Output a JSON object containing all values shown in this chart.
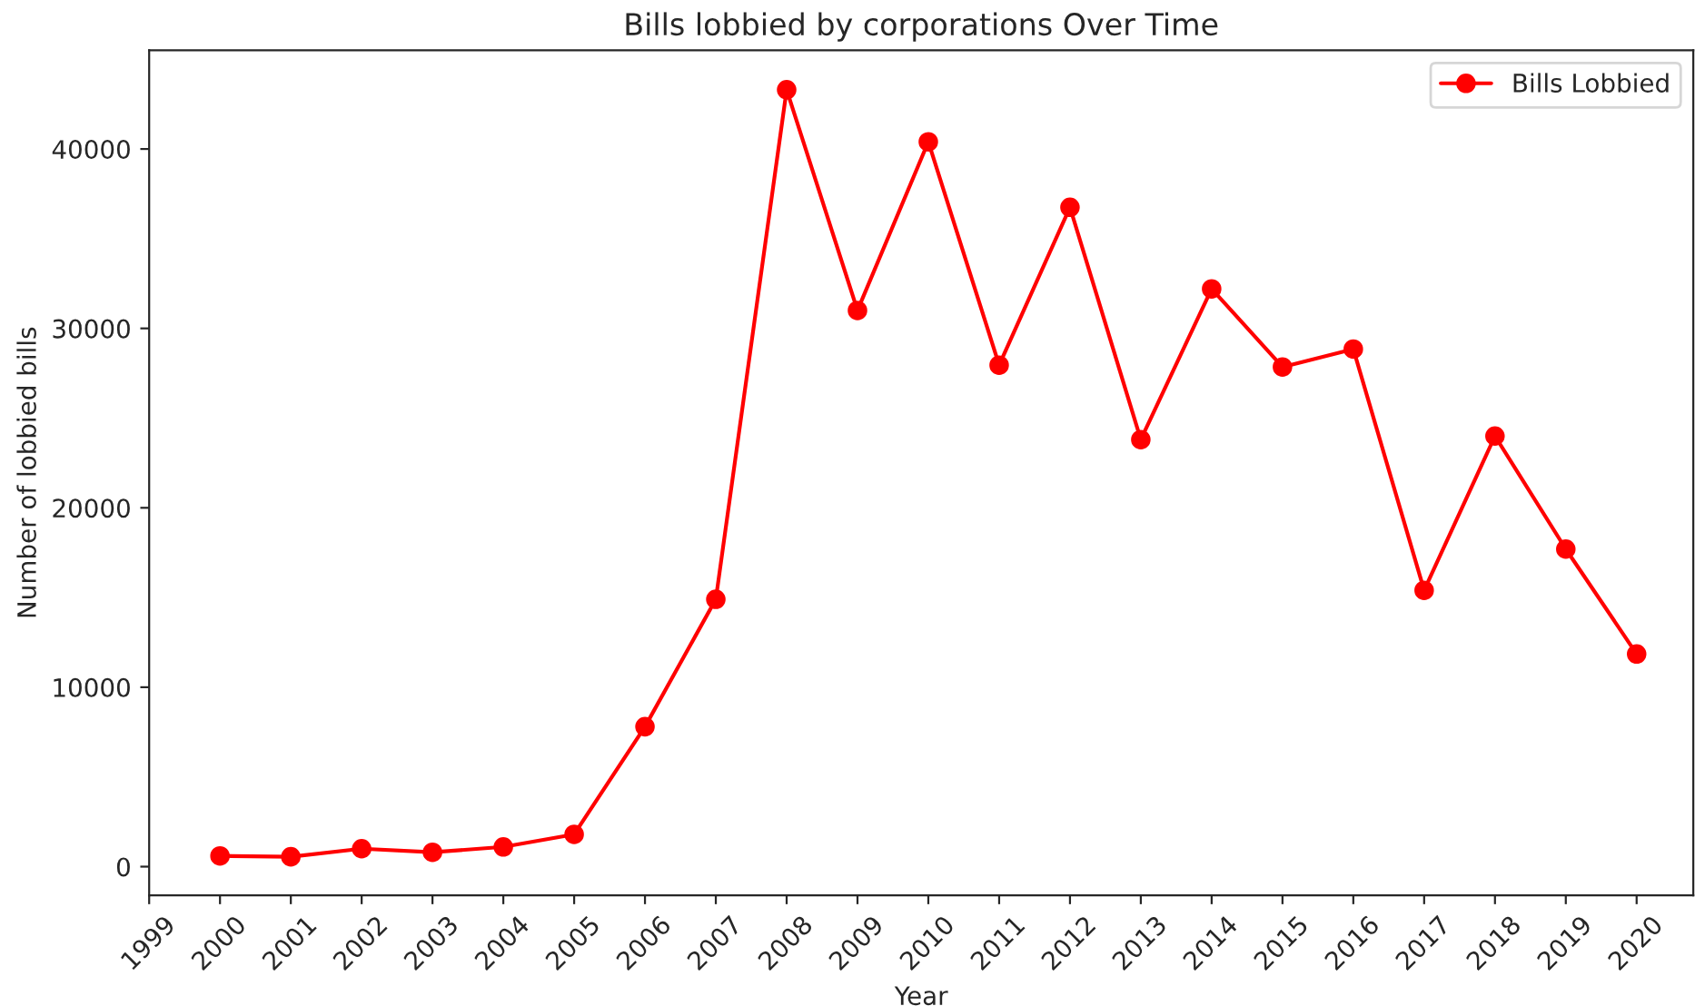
{
  "chart_data": {
    "type": "line",
    "title": "Bills lobbied by corporations Over Time",
    "xlabel": "Year",
    "ylabel": "Number of lobbied bills",
    "x": [
      2000,
      2001,
      2002,
      2003,
      2004,
      2005,
      2006,
      2007,
      2008,
      2009,
      2010,
      2011,
      2012,
      2013,
      2014,
      2015,
      2016,
      2017,
      2018,
      2019,
      2020
    ],
    "series": [
      {
        "name": "Bills Lobbied",
        "color": "#ff0000",
        "values": [
          600,
          550,
          1000,
          800,
          1100,
          1800,
          7800,
          14900,
          43300,
          31000,
          40400,
          27950,
          36750,
          23800,
          32200,
          27850,
          28850,
          15400,
          24000,
          17700,
          11850
        ]
      }
    ],
    "xlim": [
      1999,
      2020.8
    ],
    "xticks": [
      1999,
      2000,
      2001,
      2002,
      2003,
      2004,
      2005,
      2006,
      2007,
      2008,
      2009,
      2010,
      2011,
      2012,
      2013,
      2014,
      2015,
      2016,
      2017,
      2018,
      2019,
      2020
    ],
    "ylim": [
      -1600,
      45500
    ],
    "yticks": [
      0,
      10000,
      20000,
      30000,
      40000
    ],
    "marker": "circle",
    "line_style": "solid",
    "legend": "top right",
    "grid": false
  }
}
